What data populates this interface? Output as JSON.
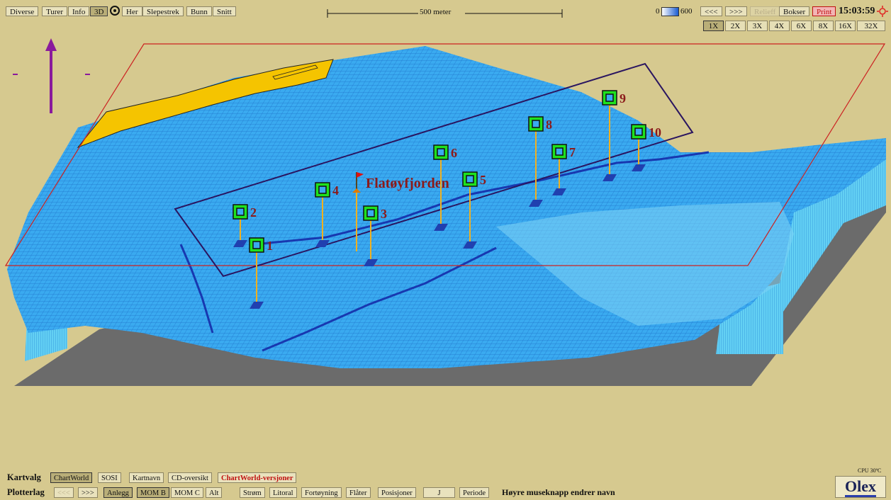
{
  "toolbar": {
    "left_buttons": [
      "Diverse",
      "Turer",
      "Info",
      "3D",
      "Her",
      "Slepestrek",
      "Bunn",
      "Snitt"
    ],
    "scale_label": "500 meter",
    "depth_min": "0",
    "depth_max": "600",
    "prev_label": "<<<",
    "next_label": ">>>",
    "relieff_label": "Relieff",
    "bokser_label": "Bokser",
    "print_label": "Print",
    "clock": "15:03:59"
  },
  "zoom_levels": [
    "1X",
    "2X",
    "3X",
    "4X",
    "6X",
    "8X",
    "16X",
    "32X"
  ],
  "zoom_active": "1X",
  "map": {
    "place_name": "Flatøyfjorden",
    "markers": [
      "1",
      "2",
      "3",
      "4",
      "5",
      "6",
      "7",
      "8",
      "9",
      "10"
    ],
    "north_arrow_icon": "north-arrow-icon",
    "colors": {
      "water": "#37a8ec",
      "land": "#f5c400",
      "frame": "#cc2222",
      "box": "#2a1560",
      "marker": "#1ee21e",
      "label": "#8b1a1a",
      "pole": "#f0b020",
      "background": "#d6c98f"
    }
  },
  "bottom": {
    "kartvalg_label": "Kartvalg",
    "kartvalg_buttons": [
      "ChartWorld",
      "SOSI",
      "Kartnavn",
      "CD-oversikt",
      "ChartWorld-versjoner"
    ],
    "plotterlag_label": "Plotterlag",
    "plotterlag_buttons": [
      "<<<",
      ">>>",
      "Anlegg",
      "MOM B",
      "MOM C",
      "Alt",
      "Strøm",
      "Litoral",
      "Fortøyning",
      "Flåter",
      "Posisjoner",
      "J",
      "Periode"
    ],
    "hint": "Høyre museknapp endrer navn",
    "cpu": "CPU 30ºC",
    "logo": "Olex"
  }
}
